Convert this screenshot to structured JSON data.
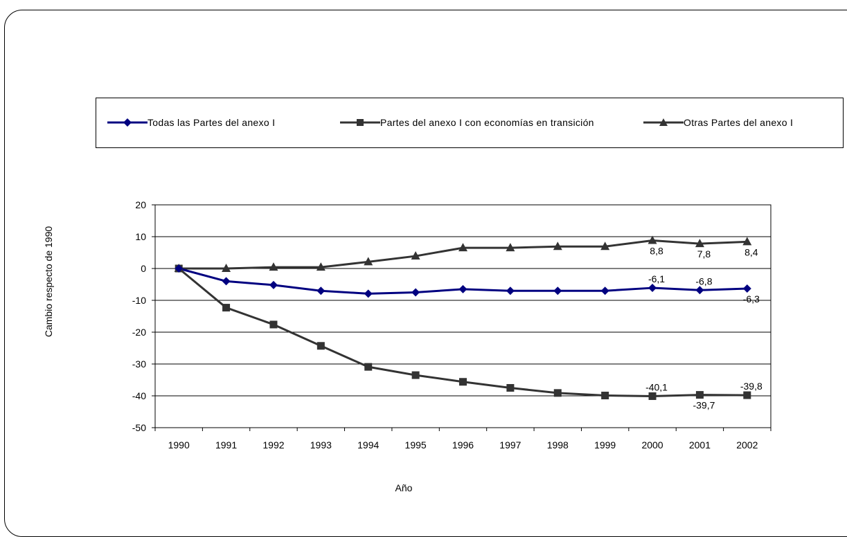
{
  "chart_data": {
    "type": "line",
    "title": "",
    "xlabel": "Año",
    "ylabel": "Cambio respecto de 1990",
    "ylim": [
      -50,
      20
    ],
    "yticks": [
      20,
      10,
      0,
      -10,
      -20,
      -30,
      -40,
      -50
    ],
    "grid": true,
    "legend_position": "top",
    "categories": [
      "1990",
      "1991",
      "1992",
      "1993",
      "1994",
      "1995",
      "1996",
      "1997",
      "1998",
      "1999",
      "2000",
      "2001",
      "2002"
    ],
    "series": [
      {
        "name": "Todas las Partes del anexo I",
        "color": "#000080",
        "marker": "diamond",
        "values": [
          0,
          -4,
          -5.2,
          -7,
          -7.9,
          -7.5,
          -6.5,
          -7,
          -7,
          -7,
          -6.1,
          -6.8,
          -6.3
        ],
        "labels": [
          {
            "index": 10,
            "text": "-6,1",
            "position": "above"
          },
          {
            "index": 11,
            "text": "-6,8",
            "position": "above"
          },
          {
            "index": 12,
            "text": "-6,3",
            "position": "below"
          }
        ]
      },
      {
        "name": "Partes del anexo I con economías en transición",
        "color": "#333333",
        "marker": "square",
        "values": [
          0,
          -12.3,
          -17.6,
          -24.3,
          -30.9,
          -33.5,
          -35.6,
          -37.5,
          -39.1,
          -39.9,
          -40.1,
          -39.7,
          -39.8
        ],
        "labels": [
          {
            "index": 10,
            "text": "-40,1",
            "position": "above"
          },
          {
            "index": 11,
            "text": "-39,7",
            "position": "below"
          },
          {
            "index": 12,
            "text": "-39,8",
            "position": "above"
          }
        ]
      },
      {
        "name": "Otras Partes del anexo I",
        "color": "#333333",
        "marker": "triangle",
        "values": [
          0,
          0,
          0.4,
          0.4,
          2.1,
          3.9,
          6.5,
          6.5,
          6.9,
          6.9,
          8.8,
          7.8,
          8.4
        ],
        "labels": [
          {
            "index": 10,
            "text": "8,8",
            "position": "below"
          },
          {
            "index": 11,
            "text": "7,8",
            "position": "below"
          },
          {
            "index": 12,
            "text": "8,4",
            "position": "below"
          }
        ]
      }
    ]
  }
}
